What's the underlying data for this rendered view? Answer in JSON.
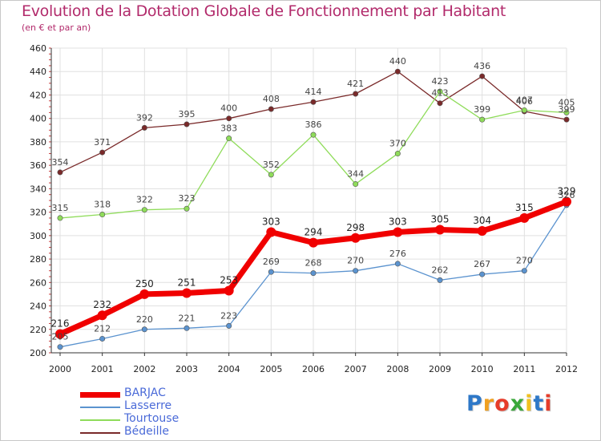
{
  "title": "Evolution de la Dotation Globale de Fonctionnement par Habitant",
  "subtitle": "(en € et par an)",
  "logo": {
    "text": "Proxiti",
    "letter_colors": [
      "#2e78c8",
      "#f0a020",
      "#e63c2a",
      "#3aa83a",
      "#f0c020",
      "#2e78c8",
      "#e63c2a"
    ]
  },
  "chart_data": {
    "type": "line",
    "x": [
      "2000",
      "2001",
      "2002",
      "2003",
      "2004",
      "2005",
      "2006",
      "2007",
      "2008",
      "2009",
      "2010",
      "2011",
      "2012"
    ],
    "ylim": [
      200,
      460
    ],
    "yticks": [
      200,
      220,
      240,
      260,
      280,
      300,
      320,
      340,
      360,
      380,
      400,
      420,
      440,
      460
    ],
    "grid": true,
    "legend": "bottom-left",
    "series": [
      {
        "name": "Bédeille",
        "color": "#7a2a2a",
        "values": [
          354,
          371,
          392,
          395,
          400,
          408,
          414,
          421,
          440,
          413,
          436,
          406,
          399
        ]
      },
      {
        "name": "Tourtouse",
        "color": "#8fdc5a",
        "values": [
          315,
          318,
          322,
          323,
          383,
          352,
          386,
          344,
          370,
          423,
          399,
          407,
          405
        ]
      },
      {
        "name": "Lasserre",
        "color": "#5b93cf",
        "values": [
          205,
          212,
          220,
          221,
          223,
          269,
          268,
          270,
          276,
          262,
          267,
          270,
          326
        ]
      },
      {
        "name": "BARJAC",
        "color": "#f00000",
        "values": [
          216,
          232,
          250,
          251,
          253,
          303,
          294,
          298,
          303,
          305,
          304,
          315,
          329
        ]
      }
    ]
  }
}
